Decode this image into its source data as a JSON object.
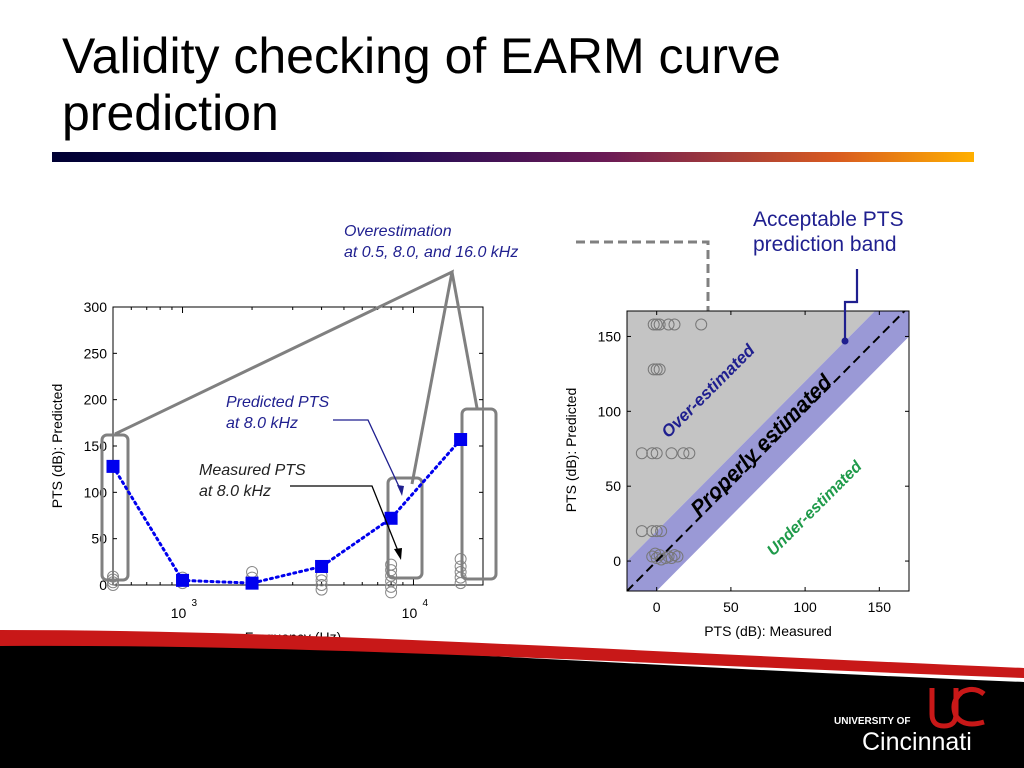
{
  "slide": {
    "title_line1": "Validity checking of EARM curve",
    "title_line2": "prediction",
    "colors": {
      "marker_blue": "#0000ee",
      "annotation_blue": "#1f1f8f",
      "band_fill": "#9a99d6",
      "over_fill": "#c4c4c4",
      "under_label": "#1f9a4a",
      "footer_red": "#c81818"
    }
  },
  "annotations": {
    "overestimation_line1": "Overestimation",
    "overestimation_line2": "at 0.5, 8.0, and 16.0 kHz",
    "predicted_line1": "Predicted PTS",
    "predicted_line2": "at 8.0 kHz",
    "measured_line1": "Measured PTS",
    "measured_line2": "at 8.0 kHz",
    "band_line1": "Acceptable PTS",
    "band_line2": "prediction band"
  },
  "chart_data": [
    {
      "type": "line",
      "xlabel": "Frequency (Hz)",
      "ylabel": "PTS (dB): Predicted",
      "x_scale": "log",
      "xlim": [
        500,
        20000
      ],
      "ylim": [
        0,
        300
      ],
      "yticks": [
        0,
        50,
        100,
        150,
        200,
        250,
        300
      ],
      "xticks": [
        {
          "value": 1000,
          "base": "10",
          "exp": "3"
        },
        {
          "value": 10000,
          "base": "10",
          "exp": "4"
        }
      ],
      "series": [
        {
          "marker": "square",
          "style": "dotted",
          "x": [
            500,
            1000,
            2000,
            4000,
            8000,
            16000
          ],
          "y": [
            128,
            5,
            2,
            20,
            72,
            157
          ]
        }
      ],
      "measured_scatter": [
        {
          "x": 500,
          "y": [
            0,
            3,
            6,
            9
          ]
        },
        {
          "x": 1000,
          "y": [
            2,
            5,
            8
          ]
        },
        {
          "x": 2000,
          "y": [
            2,
            8,
            14
          ]
        },
        {
          "x": 4000,
          "y": [
            -5,
            0,
            5,
            10
          ]
        },
        {
          "x": 8000,
          "y": [
            -8,
            -2,
            4,
            10,
            16,
            22
          ]
        },
        {
          "x": 16000,
          "y": [
            2,
            8,
            14,
            20,
            28
          ]
        }
      ]
    },
    {
      "type": "scatter",
      "xlabel": "PTS (dB): Measured",
      "ylabel": "PTS (dB): Predicted",
      "xlim": [
        -20,
        170
      ],
      "ylim": [
        -20,
        167
      ],
      "xticks": [
        0,
        50,
        100,
        150
      ],
      "yticks": [
        0,
        50,
        100,
        150
      ],
      "band_half_width": 20,
      "regions": {
        "over": "Over-estimated",
        "proper": "Properly estimated",
        "under": "Under-estimated"
      },
      "points": [
        {
          "x": -2,
          "y": 158
        },
        {
          "x": 0,
          "y": 158
        },
        {
          "x": 2,
          "y": 158
        },
        {
          "x": 8,
          "y": 158
        },
        {
          "x": 12,
          "y": 158
        },
        {
          "x": 30,
          "y": 158
        },
        {
          "x": -2,
          "y": 128
        },
        {
          "x": 0,
          "y": 128
        },
        {
          "x": 2,
          "y": 128
        },
        {
          "x": -10,
          "y": 72
        },
        {
          "x": -3,
          "y": 72
        },
        {
          "x": 0,
          "y": 72
        },
        {
          "x": 10,
          "y": 72
        },
        {
          "x": 18,
          "y": 72
        },
        {
          "x": 22,
          "y": 72
        },
        {
          "x": -10,
          "y": 20
        },
        {
          "x": -3,
          "y": 20
        },
        {
          "x": 0,
          "y": 20
        },
        {
          "x": 3,
          "y": 20
        },
        {
          "x": -3,
          "y": 3
        },
        {
          "x": -1,
          "y": 5
        },
        {
          "x": 0,
          "y": 2
        },
        {
          "x": 2,
          "y": 4
        },
        {
          "x": 3,
          "y": 1
        },
        {
          "x": 6,
          "y": 2
        },
        {
          "x": 8,
          "y": 3
        },
        {
          "x": 10,
          "y": 2
        },
        {
          "x": 12,
          "y": 4
        },
        {
          "x": 14,
          "y": 3
        }
      ]
    }
  ],
  "logo": {
    "line1": "UNIVERSITY OF",
    "line2": "Cincinnati"
  }
}
